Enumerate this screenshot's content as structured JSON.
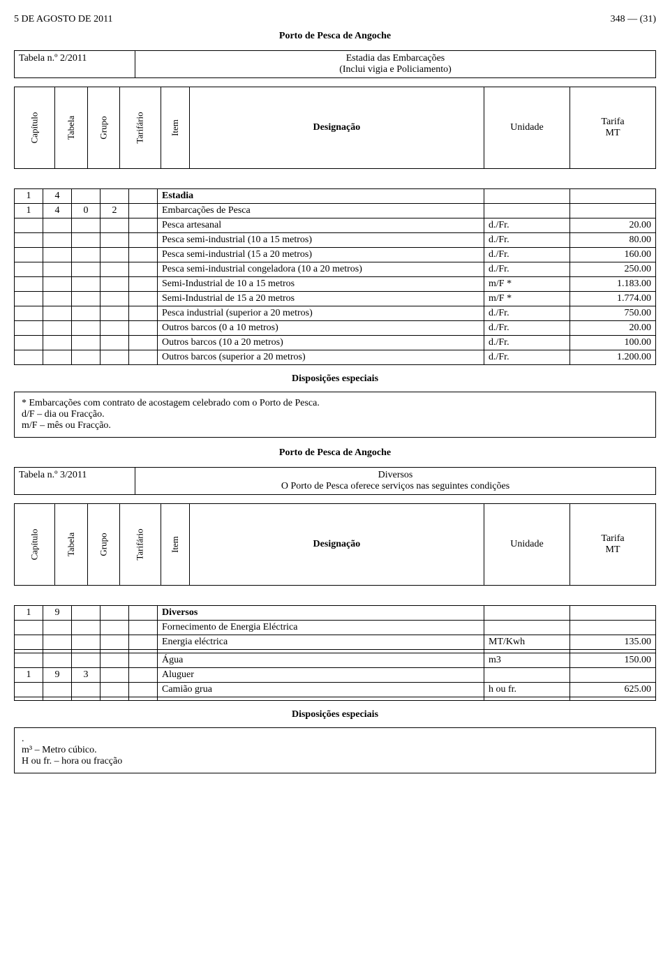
{
  "page": {
    "header_left": "5 DE AGOSTO DE 2011",
    "header_right": "348 — (31)",
    "porto_title": "Porto de Pesca de Angoche"
  },
  "tabela2": {
    "label": "Tabela n.º 2/2011",
    "subject_line1": "Estadia das Embarcações",
    "subject_line2": "(Inclui vigia e Policiamento)"
  },
  "header_block": {
    "capitulo": "Capítulo",
    "tabela": "Tabela",
    "grupo": "Grupo",
    "tarifario": "Tarifário",
    "item": "Item",
    "designacao": "Designação",
    "unidade": "Unidade",
    "tarifa": "Tarifa",
    "mt": "MT"
  },
  "estadia": {
    "row_head": {
      "c0": "1",
      "c1": "4",
      "title": "Estadia"
    },
    "row_sub": {
      "c0": "1",
      "c1": "4",
      "c2": "0",
      "c3": "2",
      "title": "Embarcações de Pesca"
    },
    "rows": [
      {
        "desc": "Pesca artesanal",
        "unit": "d./Fr.",
        "val": "20.00"
      },
      {
        "desc": "Pesca semi-industrial (10 a 15 metros)",
        "unit": "d./Fr.",
        "val": "80.00"
      },
      {
        "desc": "Pesca semi-industrial (15 a 20 metros)",
        "unit": "d./Fr.",
        "val": "160.00"
      },
      {
        "desc": "Pesca semi-industrial congeladora (10 a 20 metros)",
        "unit": "d./Fr.",
        "val": "250.00"
      },
      {
        "desc": "Semi-Industrial de 10 a 15 metros",
        "unit": "m/F *",
        "val": "1.183.00"
      },
      {
        "desc": "Semi-Industrial de 15 a 20 metros",
        "unit": "m/F *",
        "val": "1.774.00"
      },
      {
        "desc": "Pesca industrial (superior a 20 metros)",
        "unit": "d./Fr.",
        "val": "750.00"
      },
      {
        "desc": "Outros barcos (0 a 10 metros)",
        "unit": "d./Fr.",
        "val": "20.00"
      },
      {
        "desc": "Outros barcos (10 a 20 metros)",
        "unit": "d./Fr.",
        "val": "100.00"
      },
      {
        "desc": "Outros barcos (superior a 20 metros)",
        "unit": "d./Fr.",
        "val": "1.200.00"
      }
    ]
  },
  "dispos": {
    "title": "Disposições especiais",
    "note1": "* Embarcações com contrato de acostagem celebrado com o Porto de Pesca.",
    "note2": "d/F – dia ou Fracção.",
    "note3": "m/F – mês ou Fracção."
  },
  "tabela3": {
    "label": "Tabela n.º 3/2011",
    "subject_line1": "Diversos",
    "subject_line2": "O Porto de Pesca oferece serviços nas seguintes condições"
  },
  "diversos": {
    "row_head": {
      "c0": "1",
      "c1": "9",
      "title": "Diversos"
    },
    "row_forn": {
      "desc": "Fornecimento de Energia Eléctrica"
    },
    "row_energia": {
      "desc": "Energia eléctrica",
      "unit": "MT/Kwh",
      "val": "135.00"
    },
    "row_agua": {
      "desc": "Água",
      "unit": "m3",
      "val": "150.00"
    },
    "row_aluguer_head": {
      "c0": "1",
      "c1": "9",
      "c2": "3",
      "title": "Aluguer"
    },
    "row_camiao": {
      "desc": "Camião grua",
      "unit": "h ou fr.",
      "val": "625.00"
    }
  },
  "dispos2": {
    "title": "Disposições especiais",
    "note1": ".",
    "note2": "m³ – Metro cúbico.",
    "note3": "H ou fr. – hora ou fracção"
  }
}
